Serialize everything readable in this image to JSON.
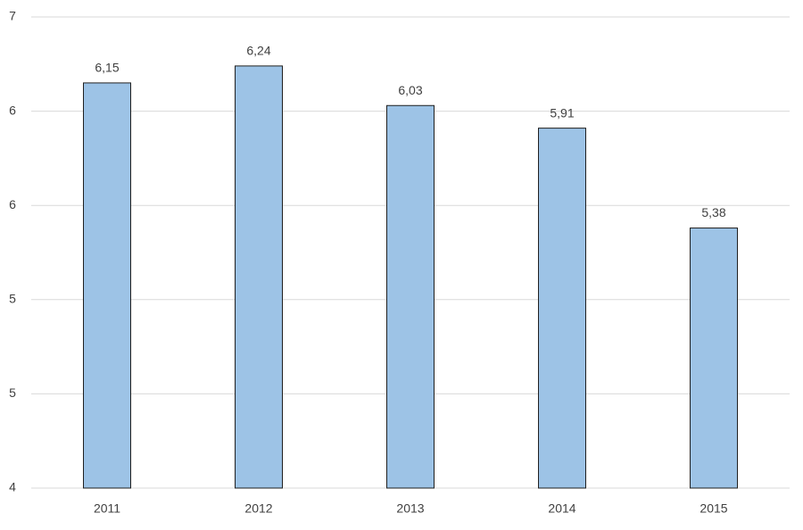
{
  "chart_data": {
    "type": "bar",
    "categories": [
      "2011",
      "2012",
      "2013",
      "2014",
      "2015"
    ],
    "values": [
      6.15,
      6.24,
      6.03,
      5.91,
      5.38
    ],
    "value_labels": [
      "6,15",
      "6,24",
      "6,03",
      "5,91",
      "5,38"
    ],
    "color": "#9dc3e6",
    "ylim": [
      4,
      6.5
    ],
    "yticks": [
      4,
      {
        "value": 4.5,
        "label": "5"
      },
      5,
      {
        "value": 5.5,
        "label": "6"
      },
      6,
      {
        "value": 6.5,
        "label": "7"
      }
    ],
    "grid": true
  }
}
